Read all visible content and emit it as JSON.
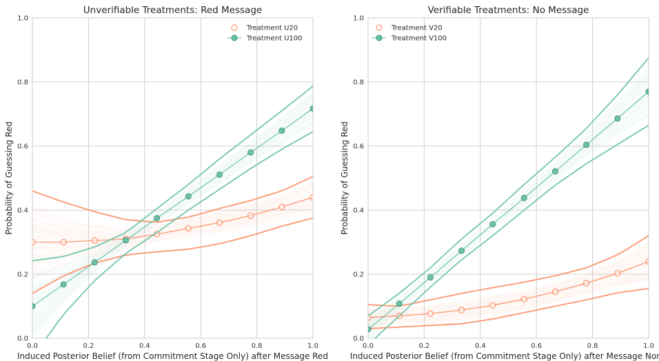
{
  "chart_data": [
    {
      "type": "line",
      "title": "Unverifiable Treatments: Red Message",
      "xlabel": "Induced Posterior Belief (from Commitment Stage Only) after Message Red",
      "ylabel": "Probability of Guessing Red",
      "xlim": [
        0,
        1
      ],
      "ylim": [
        0,
        1
      ],
      "x_ticks": [
        "0.0",
        "0.2",
        "0.4",
        "0.6",
        "0.8",
        "1.0"
      ],
      "y_ticks": [
        "0.0",
        "0.2",
        "0.4",
        "0.6",
        "0.8",
        "1.0"
      ],
      "grid": true,
      "legend_position": "top-right",
      "x": [
        0,
        0.111,
        0.222,
        0.333,
        0.444,
        0.556,
        0.667,
        0.778,
        0.889,
        1.0
      ],
      "series": [
        {
          "name": "Treatment U20",
          "color": "#fc8d62",
          "marker": "open-circle",
          "values": [
            0.3,
            0.3,
            0.305,
            0.31,
            0.325,
            0.343,
            0.361,
            0.383,
            0.41,
            0.44
          ],
          "band_upper": [
            0.46,
            0.425,
            0.395,
            0.37,
            0.362,
            0.378,
            0.405,
            0.43,
            0.46,
            0.505
          ],
          "band_lower": [
            0.14,
            0.195,
            0.235,
            0.26,
            0.27,
            0.278,
            0.295,
            0.32,
            0.35,
            0.375
          ]
        },
        {
          "name": "Treatment U100",
          "color": "#66c2a5",
          "marker": "filled-circle",
          "values": [
            0.1,
            0.168,
            0.237,
            0.306,
            0.375,
            0.443,
            0.511,
            0.58,
            0.648,
            0.717
          ],
          "band_upper": [
            0.242,
            0.255,
            0.285,
            0.33,
            0.405,
            0.48,
            0.56,
            0.635,
            0.71,
            0.787
          ],
          "band_lower": [
            -0.06,
            0.075,
            0.18,
            0.265,
            0.33,
            0.4,
            0.465,
            0.53,
            0.59,
            0.645
          ]
        }
      ]
    },
    {
      "type": "line",
      "title": "Verifiable Treatments: No Message",
      "xlabel": "Induced Posterior Belief (from Commitment Stage Only) after Message None",
      "ylabel": "Probability of Guessing Red",
      "xlim": [
        0,
        1
      ],
      "ylim": [
        0,
        1
      ],
      "x_ticks": [
        "0.0",
        "0.2",
        "0.4",
        "0.6",
        "0.8",
        "1.0"
      ],
      "y_ticks": [
        "0.0",
        "0.2",
        "0.4",
        "0.6",
        "0.8",
        "1.0"
      ],
      "grid": true,
      "legend_position": "top-left",
      "x": [
        0,
        0.111,
        0.222,
        0.333,
        0.444,
        0.556,
        0.667,
        0.778,
        0.889,
        1.0
      ],
      "series": [
        {
          "name": "Treatment V20",
          "color": "#fc8d62",
          "marker": "open-circle",
          "values": [
            0.065,
            0.07,
            0.077,
            0.088,
            0.103,
            0.122,
            0.145,
            0.172,
            0.203,
            0.24
          ],
          "band_upper": [
            0.105,
            0.1,
            0.12,
            0.14,
            0.158,
            0.175,
            0.195,
            0.22,
            0.26,
            0.32
          ],
          "band_lower": [
            0.03,
            0.035,
            0.04,
            0.045,
            0.06,
            0.08,
            0.1,
            0.12,
            0.142,
            0.155
          ]
        },
        {
          "name": "Treatment V100",
          "color": "#66c2a5",
          "marker": "filled-circle",
          "values": [
            0.028,
            0.108,
            0.19,
            0.273,
            0.356,
            0.438,
            0.521,
            0.604,
            0.686,
            0.77
          ],
          "band_upper": [
            0.07,
            0.14,
            0.22,
            0.31,
            0.39,
            0.48,
            0.565,
            0.655,
            0.76,
            0.875
          ],
          "band_lower": [
            -0.02,
            0.07,
            0.16,
            0.245,
            0.32,
            0.4,
            0.478,
            0.545,
            0.605,
            0.665
          ]
        }
      ]
    }
  ]
}
